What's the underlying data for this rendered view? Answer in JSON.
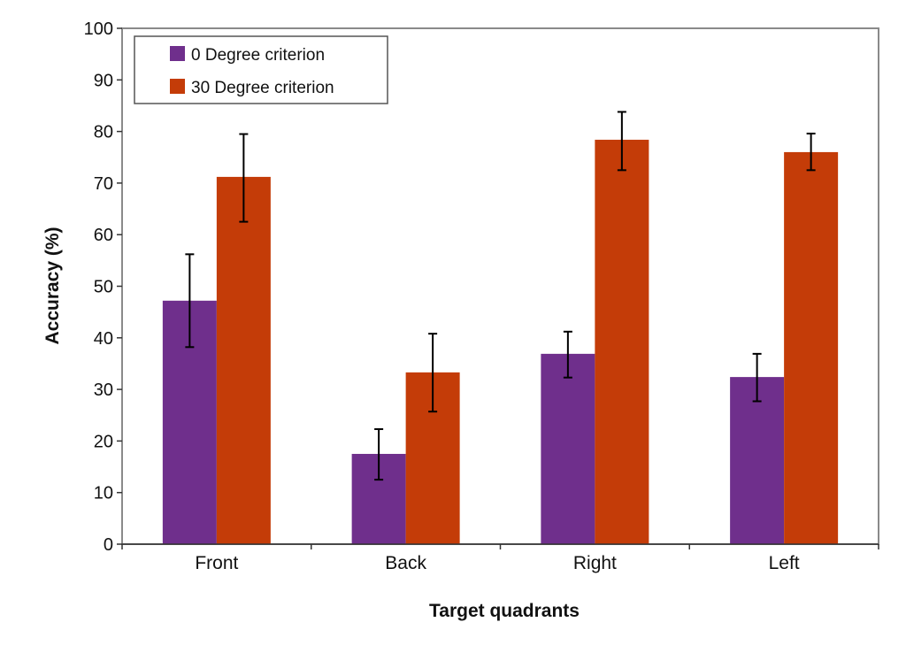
{
  "chart_data": {
    "type": "bar",
    "title": "",
    "xlabel": "Target quadrants",
    "ylabel": "Accuracy (%)",
    "ylim": [
      0,
      100
    ],
    "yticks": [
      0,
      10,
      20,
      30,
      40,
      50,
      60,
      70,
      80,
      90,
      100
    ],
    "grid": false,
    "legend_position": "top-left",
    "categories": [
      "Front",
      "Back",
      "Right",
      "Left"
    ],
    "series": [
      {
        "name": "0 Degree criterion",
        "color": "#6f2f8c",
        "values": [
          47.2,
          17.5,
          36.9,
          32.4
        ],
        "error_low": [
          38.2,
          12.5,
          32.3,
          27.7
        ],
        "error_high": [
          56.2,
          22.3,
          41.2,
          36.9
        ]
      },
      {
        "name": "30 Degree criterion",
        "color": "#c43c08",
        "values": [
          71.2,
          33.3,
          78.4,
          76.0
        ],
        "error_low": [
          62.5,
          25.7,
          72.5,
          72.5
        ],
        "error_high": [
          79.5,
          40.8,
          83.8,
          79.6
        ]
      }
    ]
  }
}
